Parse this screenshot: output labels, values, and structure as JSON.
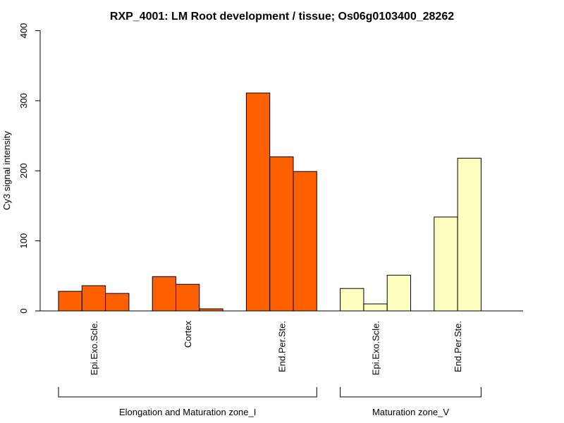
{
  "chart_data": {
    "type": "bar",
    "title": "RXP_4001: LM Root development / tissue; Os06g0103400_28262",
    "ylabel": "Cy3 signal intensity",
    "xlabel": "",
    "ylim": [
      0,
      400
    ],
    "yticks": [
      0,
      100,
      200,
      300,
      400
    ],
    "groups": [
      {
        "label": "Epi.Exo.Scle.",
        "zone": 0,
        "values": [
          28,
          36,
          25
        ]
      },
      {
        "label": "Cortex",
        "zone": 0,
        "values": [
          49,
          38,
          3
        ]
      },
      {
        "label": "End.Per.Ste.",
        "zone": 0,
        "values": [
          311,
          220,
          199
        ]
      },
      {
        "label": "Epi.Exo.Scle.",
        "zone": 1,
        "values": [
          32,
          10,
          51
        ]
      },
      {
        "label": "End.Per.Ste.",
        "zone": 1,
        "values": [
          134,
          218
        ]
      }
    ],
    "zones": [
      {
        "label": "Elongation and Maturation zone_I",
        "color": "#ff6000"
      },
      {
        "label": "Maturation zone_V",
        "color": "#ffffc0"
      }
    ],
    "bar_border_color": "#000000"
  }
}
